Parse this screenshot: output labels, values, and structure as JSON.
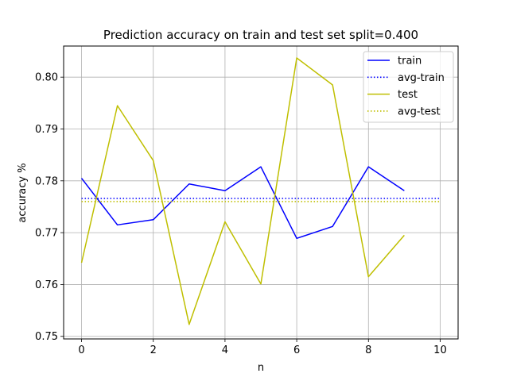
{
  "chart_data": {
    "type": "line",
    "title": "Prediction accuracy on train and test set split=0.400",
    "xlabel": "n",
    "ylabel": "accuracy %",
    "xlim": [
      -0.5,
      10.5
    ],
    "ylim": [
      0.7495,
      0.806
    ],
    "xticks": [
      0,
      2,
      4,
      6,
      8,
      10
    ],
    "yticks": [
      0.75,
      0.76,
      0.77,
      0.78,
      0.79,
      0.8
    ],
    "grid": true,
    "legend_position": "top-right",
    "series": [
      {
        "name": "train",
        "style": "solid",
        "color": "#0000ff",
        "x": [
          0,
          1,
          2,
          3,
          4,
          5,
          6,
          7,
          8,
          9
        ],
        "y": [
          0.7805,
          0.7715,
          0.7725,
          0.7794,
          0.7781,
          0.7827,
          0.7689,
          0.7712,
          0.7827,
          0.7781
        ]
      },
      {
        "name": "avg-train",
        "style": "dotted",
        "color": "#0000ff",
        "x": [
          0,
          10
        ],
        "y": [
          0.7766,
          0.7766
        ]
      },
      {
        "name": "test",
        "style": "solid",
        "color": "#bfbf00",
        "x": [
          0,
          1,
          2,
          3,
          4,
          5,
          6,
          7,
          8,
          9
        ],
        "y": [
          0.7642,
          0.7945,
          0.7839,
          0.7523,
          0.7721,
          0.7601,
          0.8037,
          0.7985,
          0.7615,
          0.7695
        ]
      },
      {
        "name": "avg-test",
        "style": "dotted",
        "color": "#bfbf00",
        "x": [
          0,
          10
        ],
        "y": [
          0.776,
          0.776
        ]
      }
    ]
  }
}
